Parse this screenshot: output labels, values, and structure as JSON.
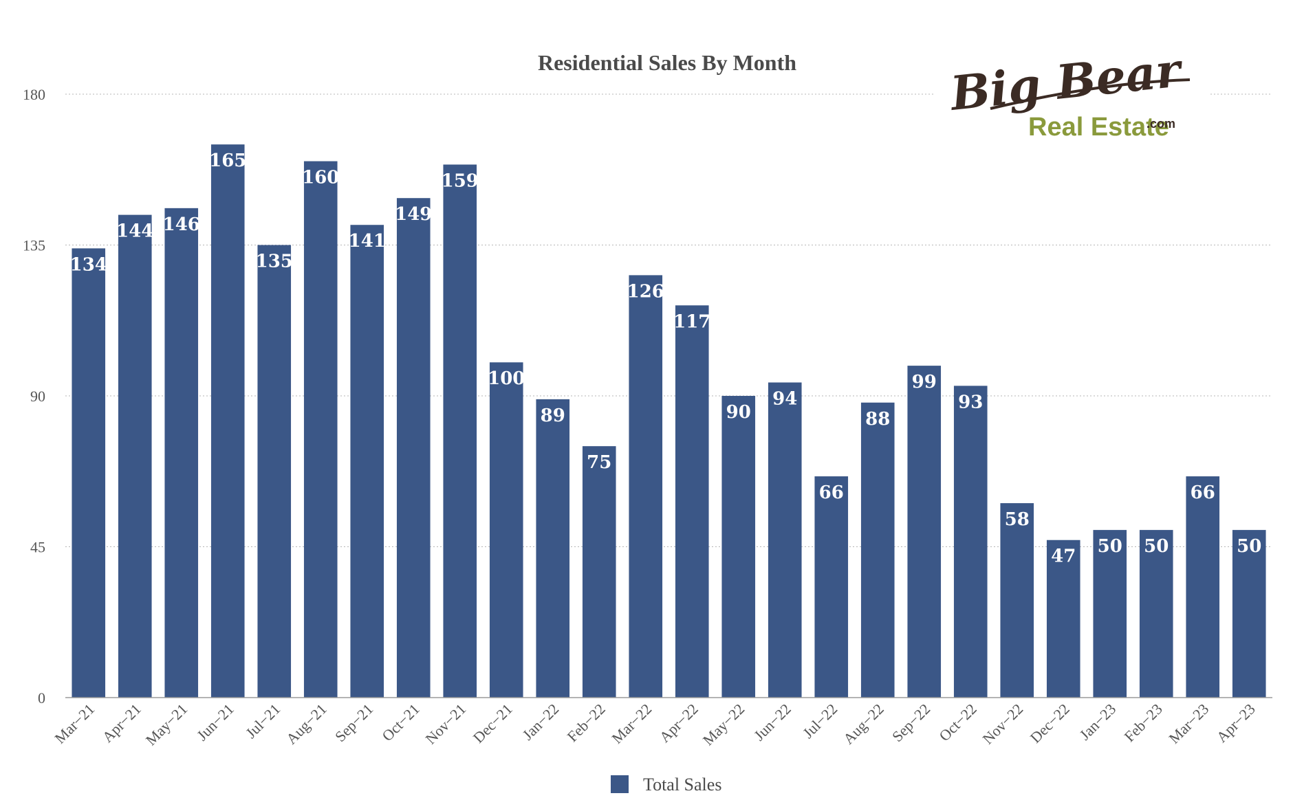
{
  "chart_data": {
    "type": "bar",
    "title": "Residential Sales By Month",
    "xlabel": "",
    "ylabel": "",
    "ylim": [
      0,
      180
    ],
    "yticks": [
      0,
      45,
      90,
      135,
      180
    ],
    "grid": true,
    "legend_position": "bottom",
    "categories": [
      "Mar−21",
      "Apr−21",
      "May−21",
      "Jun−21",
      "Jul−21",
      "Aug−21",
      "Sep−21",
      "Oct−21",
      "Nov−21",
      "Dec−21",
      "Jan−22",
      "Feb−22",
      "Mar−22",
      "Apr−22",
      "May−22",
      "Jun−22",
      "Jul−22",
      "Aug−22",
      "Sep−22",
      "Oct−22",
      "Nov−22",
      "Dec−22",
      "Jan−23",
      "Feb−23",
      "Mar−23",
      "Apr−23"
    ],
    "series": [
      {
        "name": "Total Sales",
        "color": "#3b5787",
        "values": [
          134,
          144,
          146,
          165,
          135,
          160,
          141,
          149,
          159,
          100,
          89,
          75,
          126,
          117,
          90,
          94,
          66,
          88,
          99,
          93,
          58,
          47,
          50,
          50,
          66,
          50
        ]
      }
    ]
  },
  "logo": {
    "line1": "Big Bear",
    "line2": "Real Estate",
    "suffix": ".com",
    "colors": {
      "script": "#3b2b24",
      "sub": "#8a9a3c"
    }
  },
  "colors": {
    "bar": "#3b5787",
    "grid": "#b5b5b5",
    "axis": "#9a9a9a"
  }
}
